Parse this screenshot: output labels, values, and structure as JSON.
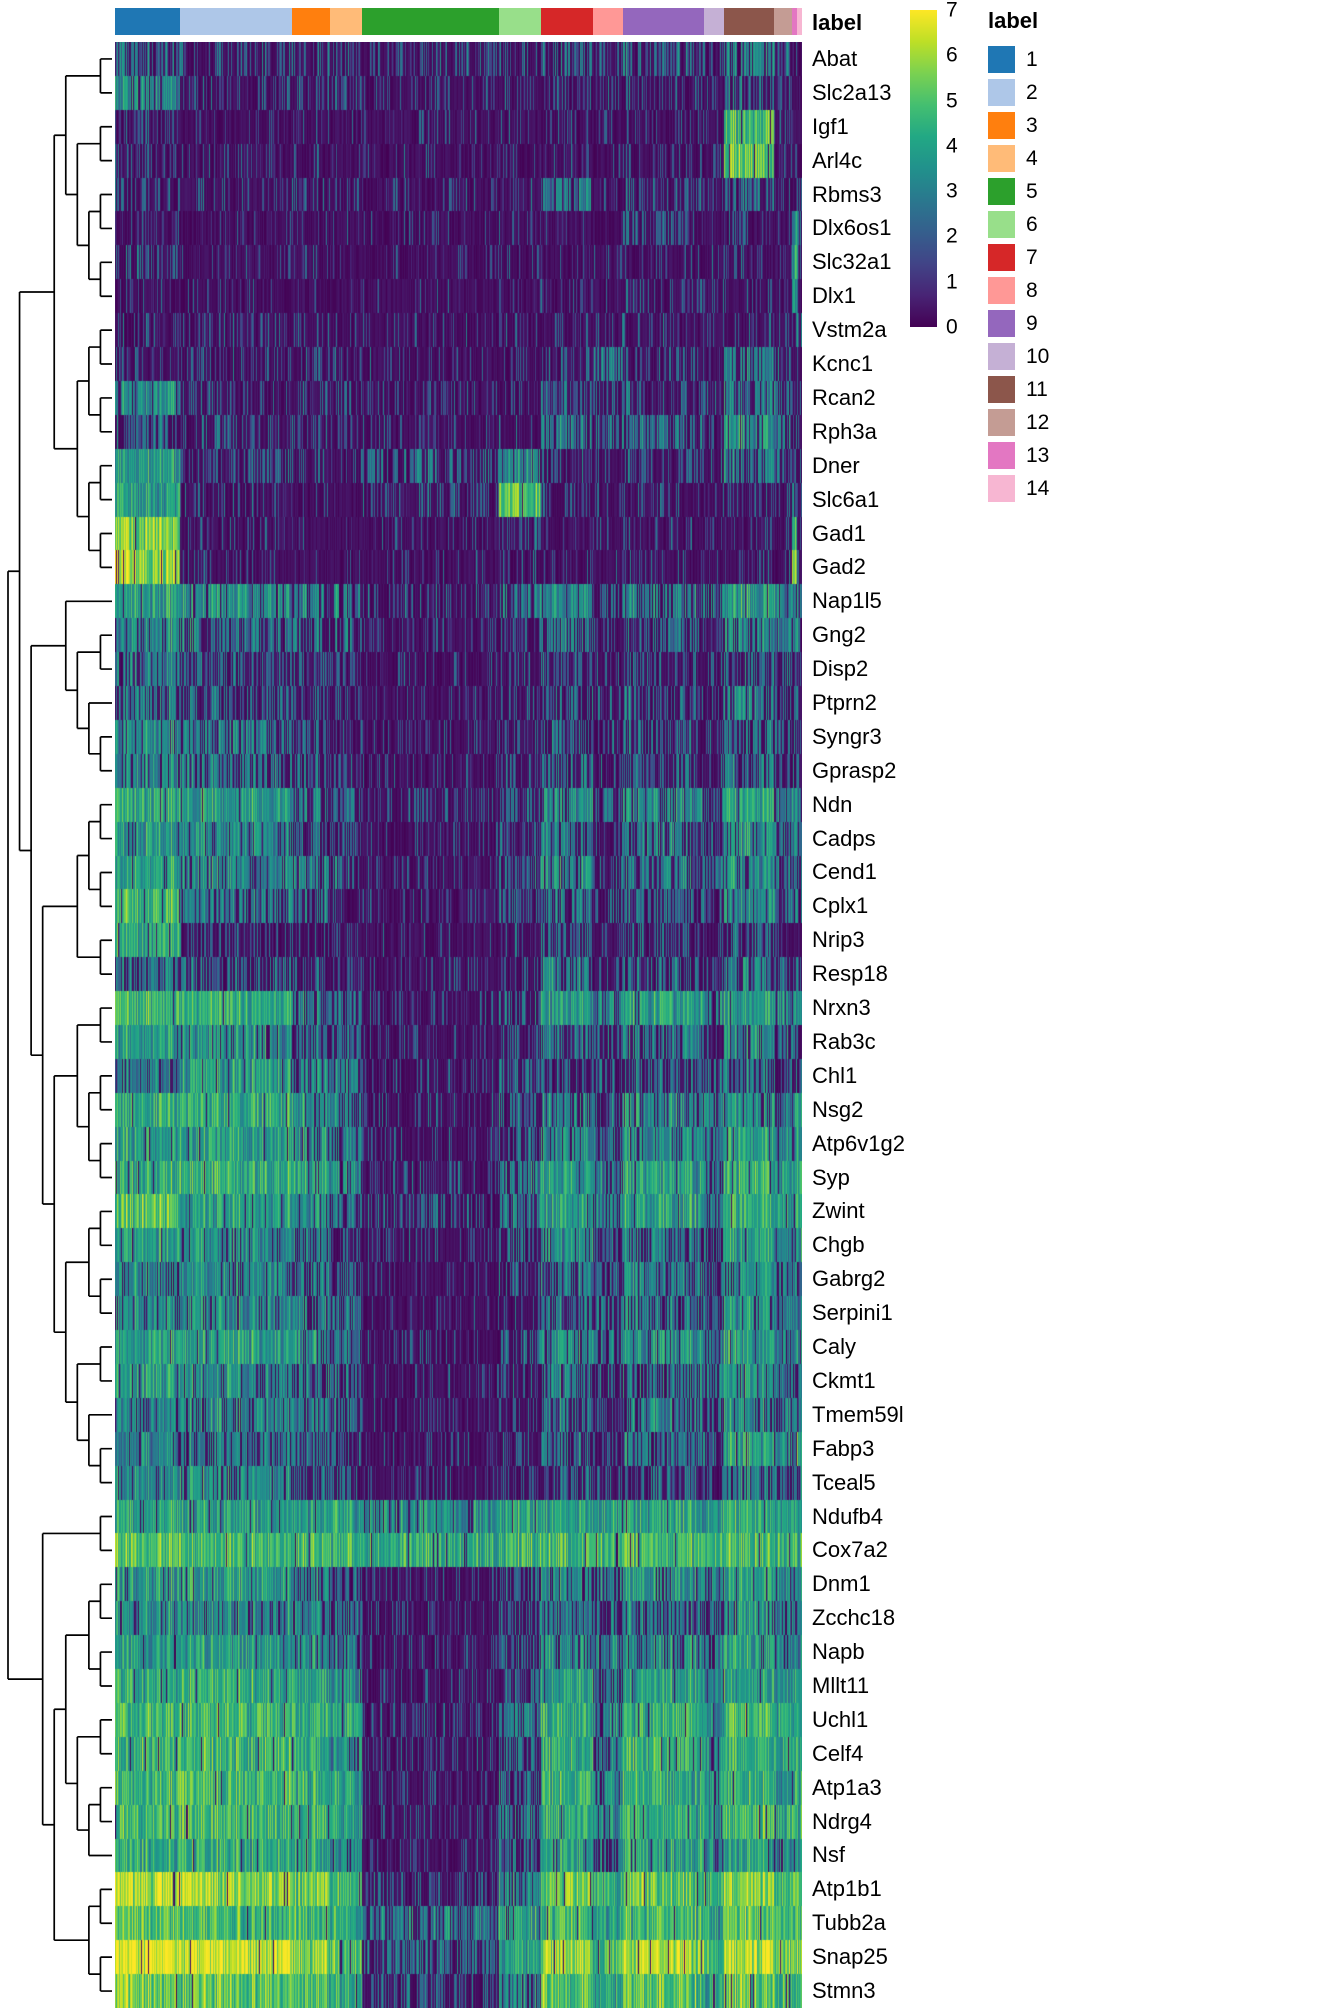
{
  "chart_data": {
    "type": "heatmap",
    "annotation_title": "label",
    "legend": {
      "title": "label"
    },
    "colorbar": {
      "ticks": [
        7,
        6,
        5,
        4,
        3,
        2,
        1,
        0
      ],
      "value_range": [
        0,
        7
      ]
    },
    "colormap": [
      [
        0,
        "#440154"
      ],
      [
        0.1,
        "#482475"
      ],
      [
        0.2,
        "#414487"
      ],
      [
        0.3,
        "#355f8d"
      ],
      [
        0.4,
        "#2a788e"
      ],
      [
        0.5,
        "#21918c"
      ],
      [
        0.6,
        "#22a884"
      ],
      [
        0.7,
        "#44bf70"
      ],
      [
        0.8,
        "#7ad151"
      ],
      [
        0.9,
        "#bddf26"
      ],
      [
        1,
        "#fde725"
      ]
    ],
    "clusters": [
      {
        "label": "1",
        "color": "#1f77b4",
        "frac": 0.095
      },
      {
        "label": "2",
        "color": "#aec7e8",
        "frac": 0.163
      },
      {
        "label": "3",
        "color": "#ff7f0e",
        "frac": 0.055
      },
      {
        "label": "4",
        "color": "#ffbb78",
        "frac": 0.047
      },
      {
        "label": "5",
        "color": "#2ca02c",
        "frac": 0.199
      },
      {
        "label": "6",
        "color": "#98df8a",
        "frac": 0.061
      },
      {
        "label": "7",
        "color": "#d62728",
        "frac": 0.076
      },
      {
        "label": "8",
        "color": "#ff9896",
        "frac": 0.044
      },
      {
        "label": "9",
        "color": "#9467bd",
        "frac": 0.118
      },
      {
        "label": "10",
        "color": "#c5b0d5",
        "frac": 0.028
      },
      {
        "label": "11",
        "color": "#8c564b",
        "frac": 0.073
      },
      {
        "label": "12",
        "color": "#c49c94",
        "frac": 0.026
      },
      {
        "label": "13",
        "color": "#e377c2",
        "frac": 0.008
      },
      {
        "label": "14",
        "color": "#f7b6d2",
        "frac": 0.007
      }
    ],
    "genes": [
      "Abat",
      "Slc2a13",
      "Igf1",
      "Arl4c",
      "Rbms3",
      "Dlx6os1",
      "Slc32a1",
      "Dlx1",
      "Vstm2a",
      "Kcnc1",
      "Rcan2",
      "Rph3a",
      "Dner",
      "Slc6a1",
      "Gad1",
      "Gad2",
      "Nap1l5",
      "Gng2",
      "Disp2",
      "Ptprn2",
      "Syngr3",
      "Gprasp2",
      "Ndn",
      "Cadps",
      "Cend1",
      "Cplx1",
      "Nrip3",
      "Resp18",
      "Nrxn3",
      "Rab3c",
      "Chl1",
      "Nsg2",
      "Atp6v1g2",
      "Syp",
      "Zwint",
      "Chgb",
      "Gabrg2",
      "Serpini1",
      "Caly",
      "Ckmt1",
      "Tmem59l",
      "Fabp3",
      "Tceal5",
      "Ndufb4",
      "Cox7a2",
      "Dnm1",
      "Zcchc18",
      "Napb",
      "Mllt11",
      "Uchl1",
      "Celf4",
      "Atp1a3",
      "Ndrg4",
      "Nsf",
      "Atp1b1",
      "Tubb2a",
      "Snap25",
      "Stmn3"
    ],
    "expression_means": [
      [
        2.0,
        1.0,
        1.0,
        1.0,
        0.8,
        1.0,
        1.5,
        1.0,
        1.5,
        1.0,
        2.0,
        1.5,
        1.0,
        1.0
      ],
      [
        2.5,
        0.8,
        0.8,
        0.8,
        0.6,
        0.8,
        1.0,
        0.8,
        0.8,
        0.8,
        1.5,
        1.0,
        0.8,
        0.8
      ],
      [
        1.0,
        0.3,
        0.4,
        0.3,
        0.3,
        0.3,
        0.5,
        0.3,
        0.4,
        0.3,
        4.0,
        1.0,
        0.5,
        0.5
      ],
      [
        1.0,
        0.4,
        0.4,
        0.4,
        0.3,
        0.4,
        0.5,
        0.4,
        0.5,
        0.4,
        4.5,
        1.0,
        0.5,
        0.5
      ],
      [
        0.8,
        0.6,
        0.6,
        0.6,
        0.5,
        0.6,
        2.0,
        0.6,
        1.0,
        0.6,
        1.5,
        1.0,
        0.6,
        0.6
      ],
      [
        0.5,
        0.2,
        0.2,
        0.2,
        0.2,
        0.2,
        0.3,
        0.2,
        1.0,
        0.3,
        0.3,
        0.3,
        3.0,
        1.0
      ],
      [
        1.5,
        0.3,
        0.3,
        0.3,
        0.2,
        0.3,
        0.4,
        0.3,
        0.5,
        0.3,
        0.4,
        0.4,
        3.0,
        1.0
      ],
      [
        0.5,
        0.3,
        0.3,
        0.3,
        0.2,
        0.3,
        0.3,
        0.3,
        0.8,
        0.3,
        0.3,
        0.3,
        3.0,
        1.0
      ],
      [
        0.6,
        0.8,
        0.5,
        0.5,
        0.3,
        0.5,
        0.5,
        0.5,
        0.8,
        0.5,
        0.6,
        0.5,
        0.8,
        2.0
      ],
      [
        0.8,
        0.8,
        0.8,
        0.8,
        0.4,
        0.6,
        1.0,
        2.0,
        1.0,
        0.8,
        2.0,
        1.5,
        0.8,
        0.8
      ],
      [
        2.5,
        0.8,
        0.8,
        0.8,
        0.5,
        0.8,
        1.5,
        0.8,
        1.0,
        0.8,
        2.0,
        2.0,
        0.8,
        0.8
      ],
      [
        1.5,
        1.0,
        0.8,
        0.8,
        0.4,
        0.6,
        2.0,
        1.5,
        1.5,
        0.8,
        2.5,
        2.0,
        1.0,
        1.0
      ],
      [
        3.0,
        1.0,
        0.8,
        0.8,
        1.5,
        2.5,
        1.0,
        0.8,
        1.0,
        0.8,
        2.0,
        2.0,
        1.0,
        1.0
      ],
      [
        3.0,
        0.5,
        0.4,
        0.4,
        1.0,
        4.5,
        0.5,
        0.4,
        0.5,
        0.4,
        0.8,
        0.8,
        2.0,
        0.8
      ],
      [
        5.0,
        0.4,
        0.3,
        0.3,
        0.3,
        0.8,
        0.4,
        0.3,
        0.4,
        0.3,
        0.5,
        0.5,
        4.0,
        1.0
      ],
      [
        5.5,
        0.4,
        0.3,
        0.3,
        0.3,
        0.8,
        0.4,
        0.3,
        0.4,
        0.3,
        0.5,
        0.5,
        4.5,
        1.0
      ],
      [
        3.0,
        2.5,
        2.0,
        2.0,
        1.0,
        2.0,
        2.5,
        1.5,
        2.0,
        2.0,
        3.0,
        2.5,
        2.0,
        2.0
      ],
      [
        2.5,
        2.0,
        1.5,
        1.5,
        0.4,
        1.0,
        2.0,
        1.0,
        1.5,
        1.0,
        2.5,
        2.0,
        2.0,
        2.0
      ],
      [
        2.0,
        1.5,
        1.0,
        1.0,
        0.3,
        0.8,
        1.5,
        0.8,
        1.0,
        0.8,
        1.5,
        1.5,
        1.0,
        1.0
      ],
      [
        2.0,
        1.5,
        1.0,
        1.0,
        0.4,
        0.8,
        1.5,
        1.0,
        1.5,
        0.8,
        2.0,
        1.5,
        1.0,
        1.0
      ],
      [
        2.5,
        2.0,
        1.5,
        1.0,
        0.4,
        0.8,
        1.5,
        1.0,
        1.5,
        1.0,
        2.0,
        1.5,
        1.5,
        1.5
      ],
      [
        2.5,
        2.0,
        1.5,
        1.0,
        0.4,
        1.0,
        1.5,
        1.0,
        1.5,
        1.0,
        2.0,
        1.5,
        1.5,
        1.5
      ],
      [
        3.5,
        3.0,
        2.0,
        2.0,
        0.8,
        1.5,
        2.5,
        1.5,
        2.5,
        1.5,
        3.0,
        2.5,
        2.5,
        2.5
      ],
      [
        3.0,
        2.5,
        1.5,
        1.5,
        0.4,
        1.0,
        2.0,
        1.0,
        2.0,
        1.0,
        2.5,
        2.0,
        2.0,
        2.0
      ],
      [
        3.0,
        2.5,
        2.0,
        1.5,
        0.5,
        1.5,
        2.5,
        1.5,
        2.0,
        1.5,
        2.5,
        2.0,
        2.0,
        2.0
      ],
      [
        4.0,
        2.0,
        1.5,
        1.0,
        0.4,
        1.5,
        2.0,
        1.0,
        1.5,
        1.0,
        2.5,
        2.0,
        2.0,
        1.0
      ],
      [
        3.5,
        1.0,
        0.8,
        0.8,
        0.3,
        0.6,
        1.5,
        0.6,
        1.0,
        0.6,
        1.5,
        1.0,
        0.8,
        0.8
      ],
      [
        2.0,
        1.5,
        1.0,
        1.0,
        0.3,
        0.8,
        2.0,
        1.0,
        1.5,
        0.8,
        2.0,
        1.5,
        1.0,
        1.0
      ],
      [
        4.0,
        3.5,
        2.0,
        2.0,
        0.5,
        1.5,
        3.0,
        2.0,
        3.0,
        2.0,
        3.0,
        2.5,
        3.0,
        3.0
      ],
      [
        3.0,
        2.5,
        1.5,
        1.5,
        0.4,
        1.0,
        2.0,
        1.5,
        2.0,
        1.0,
        2.5,
        2.0,
        2.0,
        2.0
      ],
      [
        2.0,
        3.0,
        2.0,
        2.0,
        0.5,
        1.5,
        1.5,
        1.0,
        1.5,
        1.5,
        2.0,
        1.5,
        1.5,
        2.0
      ],
      [
        3.5,
        3.5,
        2.5,
        2.0,
        0.5,
        1.5,
        2.5,
        1.5,
        2.5,
        2.0,
        2.5,
        2.0,
        2.5,
        2.5
      ],
      [
        3.0,
        3.0,
        2.5,
        2.0,
        0.6,
        1.5,
        2.5,
        1.5,
        2.5,
        2.0,
        3.0,
        2.5,
        2.5,
        2.5
      ],
      [
        3.5,
        3.5,
        3.0,
        2.5,
        0.8,
        2.0,
        3.0,
        2.0,
        3.0,
        2.0,
        3.5,
        3.0,
        3.0,
        3.0
      ],
      [
        4.5,
        3.0,
        2.5,
        2.0,
        1.0,
        2.0,
        3.0,
        2.0,
        3.0,
        2.0,
        3.5,
        3.0,
        3.0,
        3.5
      ],
      [
        3.0,
        2.5,
        2.0,
        1.5,
        0.5,
        1.5,
        2.5,
        1.5,
        2.0,
        1.5,
        3.0,
        2.5,
        2.0,
        2.5
      ],
      [
        2.5,
        2.5,
        2.0,
        1.5,
        0.4,
        1.0,
        2.0,
        1.5,
        2.0,
        1.5,
        2.5,
        2.0,
        2.0,
        2.0
      ],
      [
        2.5,
        2.5,
        2.0,
        2.0,
        0.4,
        1.0,
        2.0,
        1.5,
        2.0,
        1.5,
        2.5,
        2.0,
        2.0,
        2.0
      ],
      [
        3.0,
        3.0,
        2.5,
        2.0,
        0.5,
        1.5,
        2.5,
        2.0,
        2.5,
        2.0,
        3.0,
        2.5,
        2.5,
        2.5
      ],
      [
        3.0,
        2.5,
        2.0,
        1.5,
        0.3,
        1.0,
        2.0,
        1.5,
        2.0,
        1.5,
        2.5,
        2.0,
        2.0,
        2.0
      ],
      [
        2.5,
        2.5,
        2.0,
        1.5,
        0.3,
        1.0,
        2.0,
        1.0,
        2.0,
        1.5,
        2.5,
        2.0,
        2.0,
        2.0
      ],
      [
        2.5,
        2.0,
        1.5,
        1.5,
        0.4,
        1.0,
        2.0,
        1.0,
        2.0,
        1.5,
        3.0,
        2.5,
        2.0,
        3.5
      ],
      [
        2.5,
        2.5,
        1.5,
        1.5,
        0.4,
        1.0,
        1.5,
        1.0,
        1.5,
        1.5,
        2.0,
        2.0,
        1.5,
        2.0
      ],
      [
        3.5,
        3.0,
        3.0,
        3.0,
        2.5,
        3.0,
        3.0,
        3.0,
        3.0,
        3.0,
        3.5,
        3.0,
        3.0,
        3.0
      ],
      [
        4.5,
        4.0,
        4.0,
        4.0,
        3.5,
        4.0,
        4.0,
        4.0,
        4.0,
        4.0,
        4.0,
        4.0,
        4.0,
        4.0
      ],
      [
        3.0,
        3.0,
        2.5,
        2.0,
        0.6,
        1.5,
        2.5,
        2.0,
        2.5,
        2.0,
        3.0,
        2.5,
        2.5,
        2.5
      ],
      [
        2.5,
        2.5,
        2.0,
        2.0,
        0.5,
        1.5,
        2.0,
        1.5,
        2.0,
        1.5,
        2.5,
        2.0,
        2.0,
        2.0
      ],
      [
        3.0,
        3.0,
        2.5,
        2.0,
        0.6,
        1.5,
        2.5,
        2.0,
        2.5,
        2.0,
        3.0,
        2.5,
        2.5,
        2.5
      ],
      [
        3.5,
        3.5,
        3.0,
        2.5,
        0.5,
        1.5,
        3.0,
        2.0,
        3.0,
        2.0,
        3.0,
        2.5,
        3.0,
        3.0
      ],
      [
        4.0,
        4.0,
        3.5,
        3.0,
        0.8,
        2.0,
        3.5,
        2.5,
        3.5,
        2.5,
        4.0,
        3.5,
        3.5,
        3.5
      ],
      [
        4.0,
        4.0,
        3.0,
        2.5,
        0.5,
        1.5,
        3.5,
        2.0,
        3.5,
        2.5,
        3.5,
        3.0,
        3.5,
        3.0
      ],
      [
        4.0,
        4.0,
        3.5,
        3.0,
        0.4,
        1.5,
        3.5,
        2.5,
        3.5,
        2.5,
        3.5,
        3.0,
        3.5,
        3.0
      ],
      [
        4.0,
        4.0,
        3.5,
        3.0,
        0.5,
        2.0,
        3.5,
        2.5,
        3.5,
        2.5,
        4.0,
        3.5,
        3.5,
        3.5
      ],
      [
        3.5,
        3.5,
        3.0,
        2.5,
        0.5,
        1.5,
        3.0,
        2.0,
        3.0,
        2.0,
        3.0,
        2.5,
        3.0,
        2.5
      ],
      [
        6.0,
        5.5,
        4.5,
        4.0,
        1.0,
        2.5,
        5.0,
        3.5,
        4.5,
        3.5,
        5.0,
        4.5,
        4.5,
        4.5
      ],
      [
        4.5,
        4.0,
        4.0,
        3.5,
        2.0,
        3.0,
        4.0,
        3.0,
        4.0,
        3.0,
        4.5,
        4.0,
        4.0,
        4.0
      ],
      [
        6.5,
        6.0,
        5.0,
        4.5,
        1.5,
        3.0,
        5.5,
        4.0,
        5.5,
        4.0,
        5.5,
        5.0,
        5.0,
        5.5
      ],
      [
        5.0,
        4.5,
        4.0,
        3.5,
        1.0,
        2.5,
        4.5,
        3.0,
        4.5,
        3.0,
        4.5,
        4.0,
        4.0,
        4.0
      ]
    ],
    "row_dendrogram": [
      [
        [
          [
            [
              0,
              1
            ],
            [
              [
                2,
                3
              ],
              [
                [
                  4,
                  5
                ],
                [
                  6,
                  7
                ]
              ]
            ]
          ],
          [
            [
              [
                8,
                9
              ],
              [
                10,
                11
              ]
            ],
            [
              [
                12,
                13
              ],
              [
                14,
                15
              ]
            ]
          ]
        ],
        [
          [
            16,
            [
              [
                17,
                18
              ],
              [
                19,
                [
                  20,
                  21
                ]
              ]
            ]
          ],
          [
            [
              [
                [
                  22,
                  23
                ],
                [
                  24,
                  25
                ]
              ],
              [
                26,
                27
              ]
            ],
            [
              [
                [
                  28,
                  29
                ],
                [
                  [
                    30,
                    31
                  ],
                  [
                    32,
                    33
                  ]
                ]
              ],
              [
                [
                  [
                    34,
                    35
                  ],
                  [
                    36,
                    37
                  ]
                ],
                [
                  [
                    38,
                    39
                  ],
                  [
                    40,
                    [
                      41,
                      42
                    ]
                  ]
                ]
              ]
            ]
          ]
        ]
      ],
      [
        [
          43,
          44
        ],
        [
          [
            [
              [
                45,
                46
              ],
              [
                47,
                48
              ]
            ],
            [
              [
                49,
                50
              ],
              [
                [
                  51,
                  52
                ],
                53
              ]
            ]
          ],
          [
            [
              54,
              55
            ],
            [
              56,
              57
            ]
          ]
        ]
      ]
    ]
  }
}
